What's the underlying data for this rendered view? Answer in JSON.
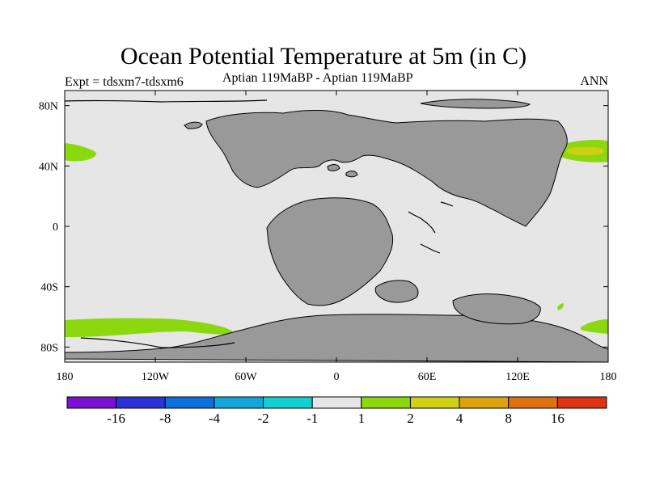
{
  "title": "Ocean Potential Temperature at 5m (in C)",
  "left_string": "Expt = tdsxm7-tdsxm6",
  "center_string": "Aptian   119MaBP - Aptian   119MaBP",
  "right_string": "ANN",
  "map": {
    "projection": "cylindrical-equidistant",
    "background_color": "#e6e6e6",
    "land_color": "#999999",
    "y_ticks": [
      {
        "lat": 80,
        "label": "80N"
      },
      {
        "lat": 40,
        "label": "40N"
      },
      {
        "lat": 0,
        "label": "0"
      },
      {
        "lat": -40,
        "label": "40S"
      },
      {
        "lat": -80,
        "label": "80S"
      }
    ],
    "x_ticks": [
      {
        "lon": -180,
        "label": "180"
      },
      {
        "lon": -120,
        "label": "120W"
      },
      {
        "lon": -60,
        "label": "60W"
      },
      {
        "lon": 0,
        "label": "0"
      },
      {
        "lon": 60,
        "label": "60E"
      },
      {
        "lon": 120,
        "label": "120E"
      },
      {
        "lon": 180,
        "label": "180"
      }
    ]
  },
  "colorbar": {
    "colors": [
      "#7a12d6",
      "#2d32d6",
      "#0f6fd8",
      "#13a6d8",
      "#14cfcf",
      "#e6e6e6",
      "#8bd80f",
      "#cfcf14",
      "#dca30f",
      "#de7012",
      "#dd3312"
    ],
    "labels": [
      "-16",
      "-8",
      "-4",
      "-2",
      "-1",
      "1",
      "2",
      "4",
      "8",
      "16"
    ]
  },
  "anomaly_color": "#8bd80f",
  "anomaly_strong_color": "#cfcf14"
}
